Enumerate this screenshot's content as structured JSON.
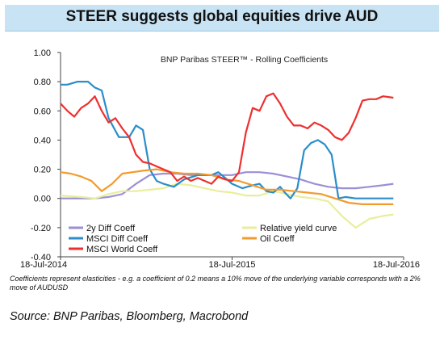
{
  "header": {
    "title": "STEER suggests global equities drive AUD"
  },
  "chart_data": {
    "type": "line",
    "title": "BNP Paribas STEER™ - Rolling Coefficients",
    "xlabel": "",
    "ylabel": "",
    "ylim": [
      -0.4,
      1.0
    ],
    "yticks": [
      "1.00",
      "0.80",
      "0.60",
      "0.40",
      "0.20",
      "0.00",
      "-0.20",
      "-0.40"
    ],
    "xlim": [
      0,
      100
    ],
    "xticks": [
      {
        "x": 0,
        "label": "18-Jul-2014"
      },
      {
        "x": 50,
        "label": "18-Jul-2015"
      },
      {
        "x": 100,
        "label": "18-Jul-2016"
      }
    ],
    "legend_position": "bottom-inside",
    "series": [
      {
        "name": "2y Diff Coeff",
        "color": "#9b8fd6",
        "x": [
          0,
          5,
          10,
          14,
          18,
          22,
          26,
          30,
          34,
          38,
          42,
          46,
          50,
          54,
          58,
          62,
          66,
          70,
          74,
          78,
          82,
          86,
          90,
          94,
          97
        ],
        "y": [
          0.0,
          0.0,
          0.0,
          0.01,
          0.03,
          0.1,
          0.16,
          0.17,
          0.17,
          0.16,
          0.16,
          0.16,
          0.16,
          0.18,
          0.18,
          0.17,
          0.15,
          0.13,
          0.1,
          0.08,
          0.07,
          0.07,
          0.08,
          0.09,
          0.1
        ]
      },
      {
        "name": "Relative yield curve",
        "color": "#e9ee9c",
        "x": [
          0,
          6,
          10,
          14,
          18,
          22,
          26,
          30,
          34,
          38,
          42,
          46,
          50,
          54,
          58,
          62,
          66,
          70,
          74,
          78,
          82,
          86,
          90,
          94,
          97
        ],
        "y": [
          0.02,
          0.01,
          0.0,
          0.03,
          0.05,
          0.05,
          0.06,
          0.07,
          0.1,
          0.09,
          0.07,
          0.05,
          0.04,
          0.02,
          0.02,
          0.05,
          0.03,
          0.01,
          0.0,
          -0.02,
          -0.12,
          -0.2,
          -0.14,
          -0.12,
          -0.11
        ]
      },
      {
        "name": "MSCI Diff Coeff",
        "color": "#2a8dc8",
        "x": [
          0,
          2,
          5,
          8,
          10,
          12,
          14,
          17,
          20,
          22,
          24,
          26,
          28,
          30,
          33,
          36,
          40,
          44,
          46,
          48,
          50,
          53,
          56,
          58,
          60,
          62,
          64,
          65,
          67,
          69,
          71,
          73,
          75,
          77,
          79,
          81,
          83,
          86,
          90,
          94,
          97
        ],
        "y": [
          0.78,
          0.78,
          0.8,
          0.8,
          0.76,
          0.74,
          0.55,
          0.42,
          0.42,
          0.5,
          0.47,
          0.2,
          0.12,
          0.1,
          0.08,
          0.13,
          0.16,
          0.16,
          0.18,
          0.14,
          0.1,
          0.07,
          0.09,
          0.1,
          0.05,
          0.04,
          0.08,
          0.05,
          0.0,
          0.07,
          0.33,
          0.38,
          0.4,
          0.37,
          0.3,
          0.0,
          0.01,
          0.0,
          0.0,
          0.0,
          0.0
        ]
      },
      {
        "name": "Oil Coeff",
        "color": "#f39a2d",
        "x": [
          0,
          3,
          6,
          9,
          12,
          15,
          18,
          21,
          24,
          28,
          32,
          36,
          40,
          44,
          48,
          52,
          56,
          60,
          64,
          68,
          72,
          76,
          80,
          84,
          88,
          92,
          97
        ],
        "y": [
          0.18,
          0.17,
          0.15,
          0.12,
          0.05,
          0.1,
          0.17,
          0.18,
          0.19,
          0.2,
          0.18,
          0.17,
          0.17,
          0.16,
          0.13,
          0.12,
          0.09,
          0.06,
          0.06,
          0.05,
          0.04,
          0.03,
          0.0,
          -0.03,
          -0.04,
          -0.04,
          -0.04
        ]
      },
      {
        "name": "MSCI World Coeff",
        "color": "#ee2f2f",
        "x": [
          0,
          2,
          4,
          6,
          8,
          10,
          12,
          14,
          16,
          18,
          20,
          22,
          24,
          26,
          28,
          30,
          32,
          34,
          36,
          38,
          40,
          42,
          44,
          46,
          48,
          50,
          52,
          54,
          56,
          58,
          60,
          62,
          64,
          66,
          68,
          70,
          72,
          74,
          76,
          78,
          80,
          82,
          84,
          86,
          88,
          90,
          92,
          94,
          97
        ],
        "y": [
          0.65,
          0.6,
          0.56,
          0.62,
          0.65,
          0.7,
          0.6,
          0.52,
          0.55,
          0.48,
          0.42,
          0.3,
          0.25,
          0.24,
          0.22,
          0.2,
          0.18,
          0.12,
          0.15,
          0.12,
          0.14,
          0.12,
          0.1,
          0.15,
          0.13,
          0.12,
          0.18,
          0.45,
          0.62,
          0.6,
          0.7,
          0.72,
          0.65,
          0.56,
          0.5,
          0.5,
          0.48,
          0.52,
          0.5,
          0.47,
          0.42,
          0.4,
          0.45,
          0.55,
          0.67,
          0.68,
          0.68,
          0.7,
          0.69
        ]
      }
    ]
  },
  "footnote": "Coefficients represent elasticities - e.g. a coefficient of 0.2 means a 10% move of the underlying variable corresponds with a 2% move of AUDUSD",
  "source": "Source:  BNP Paribas, Bloomberg, Macrobond"
}
